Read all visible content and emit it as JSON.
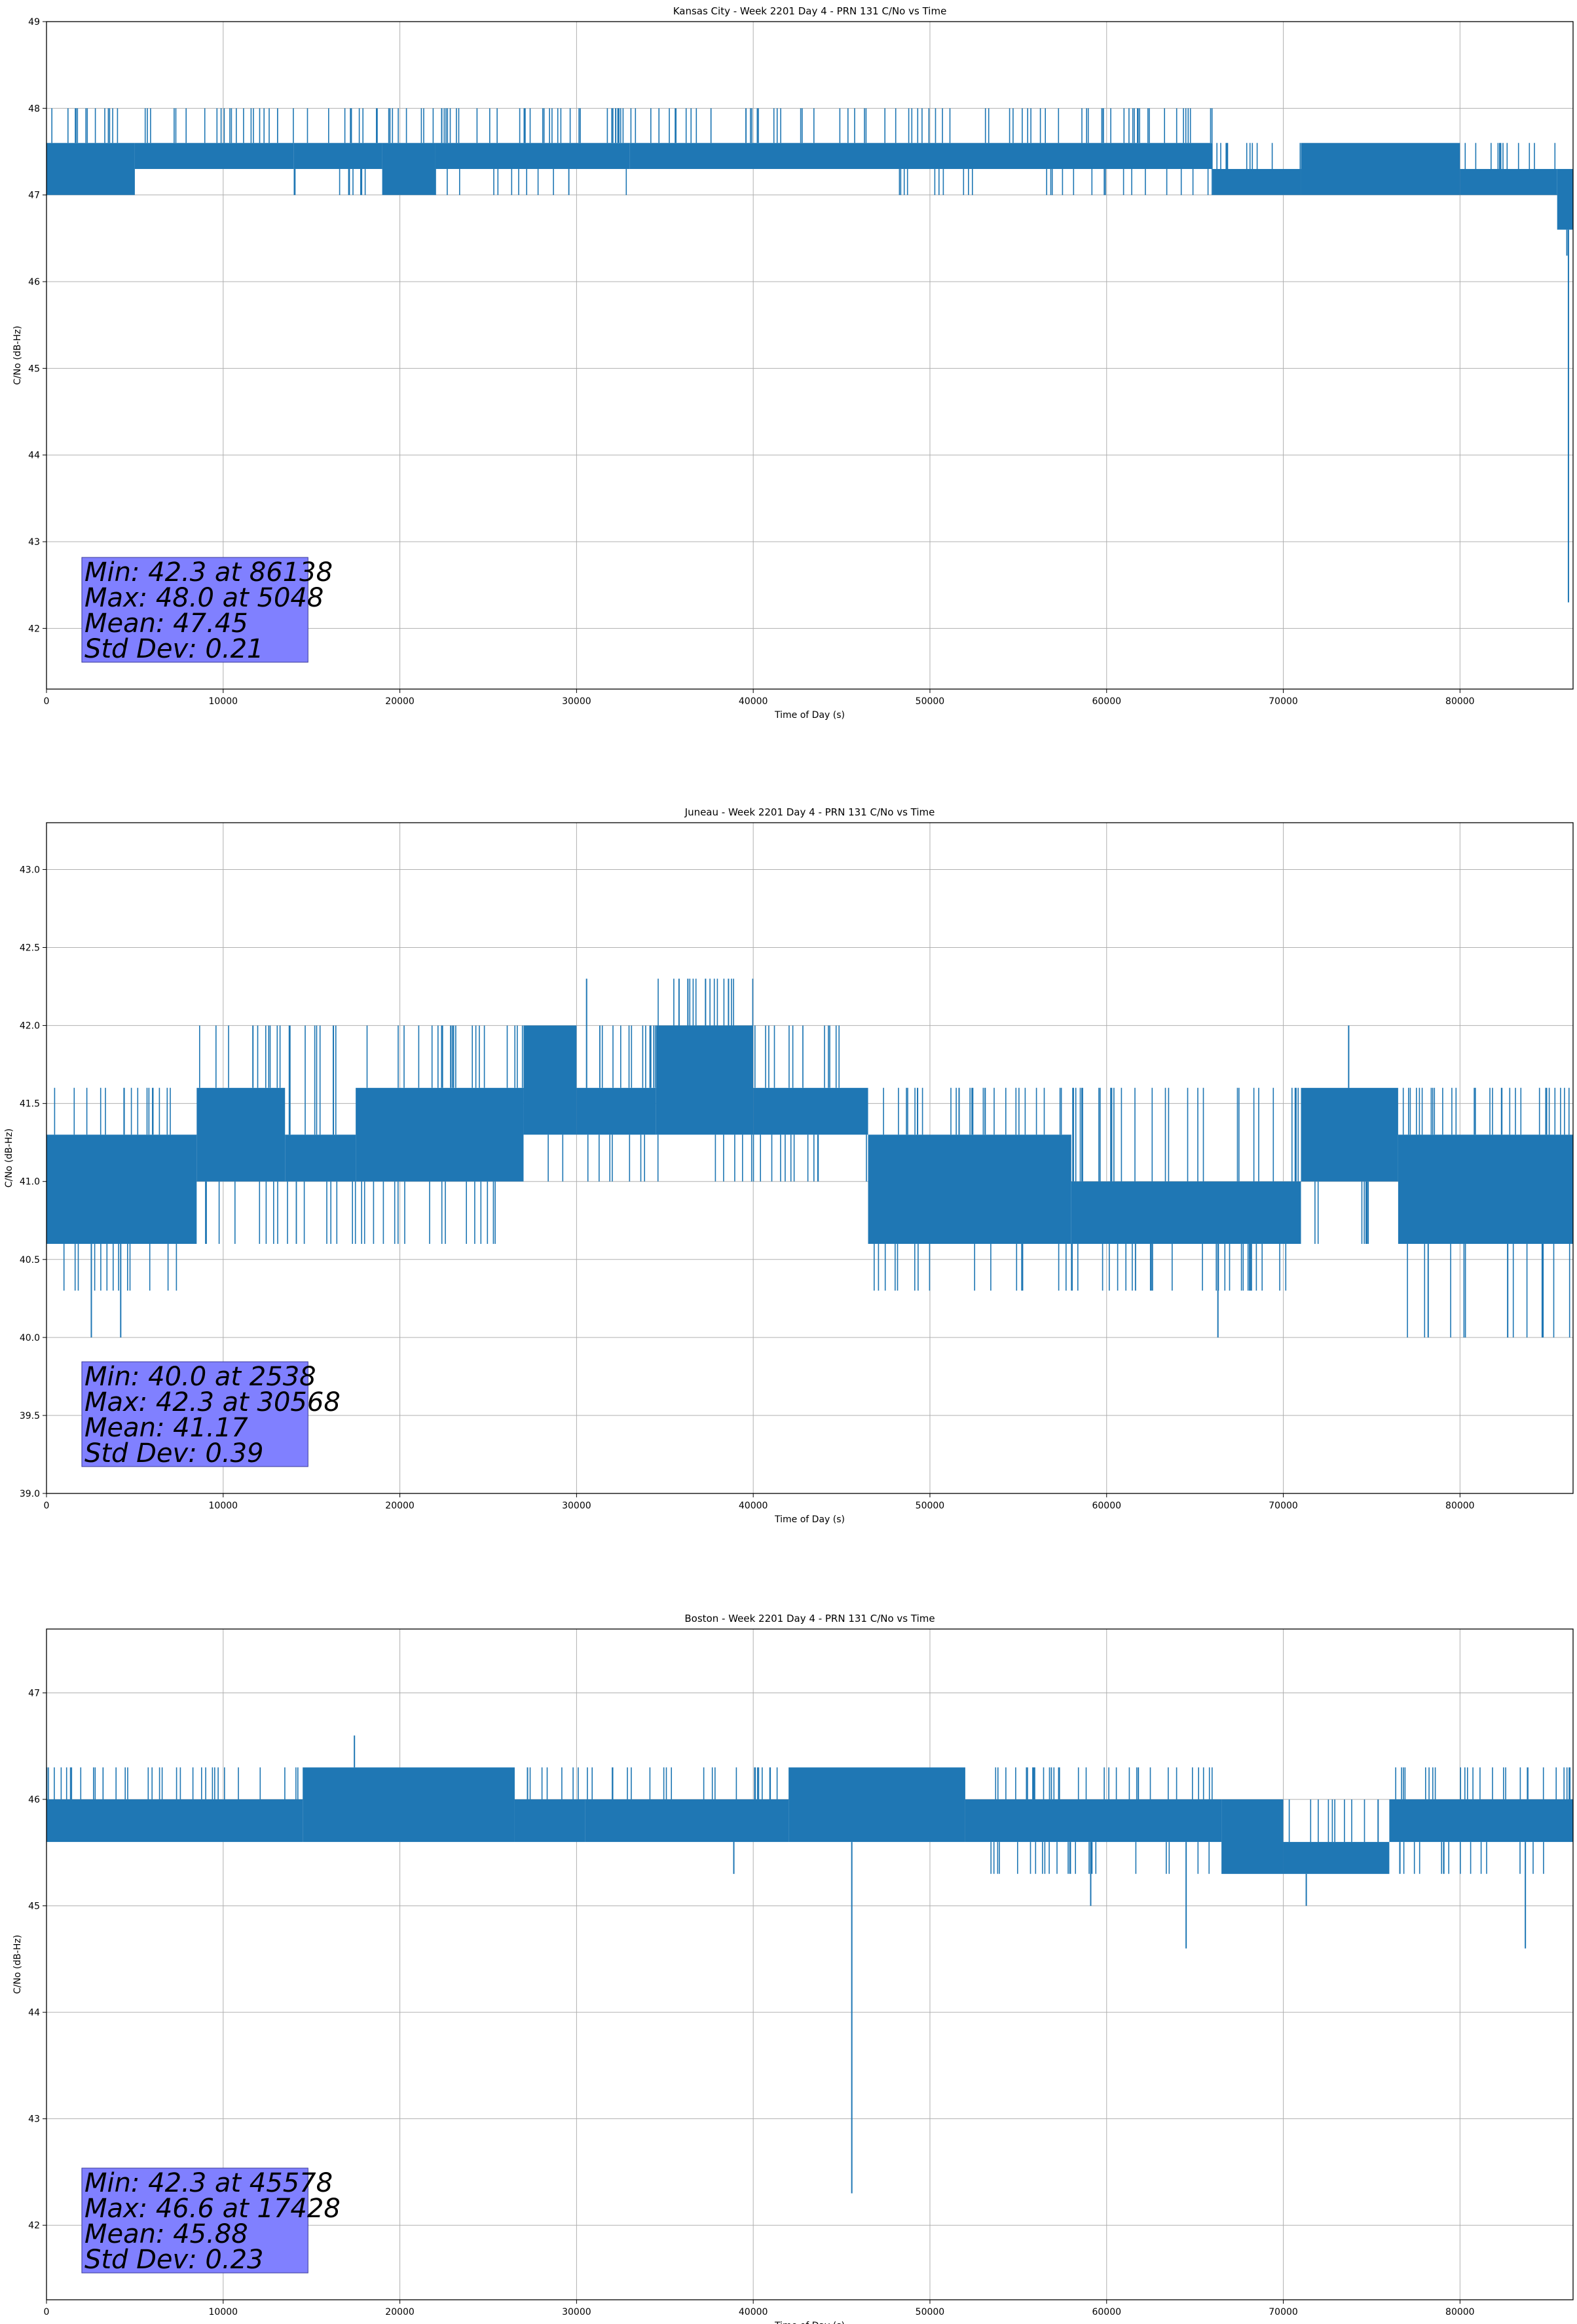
{
  "chart_data": [
    {
      "type": "line",
      "title": "Kansas City - Week 2201 Day 4 - PRN 131 C/No vs Time",
      "xlabel": "Time of Day (s)",
      "ylabel": "C/No (dB-Hz)",
      "xlim": [
        0,
        86400
      ],
      "ylim": [
        41.3,
        49
      ],
      "xticks": [
        0,
        10000,
        20000,
        30000,
        40000,
        50000,
        60000,
        70000,
        80000
      ],
      "yticks": [
        42,
        43,
        44,
        45,
        46,
        47,
        48,
        49
      ],
      "ytick_labels": [
        "42",
        "43",
        "44",
        "45",
        "46",
        "47",
        "48",
        "49"
      ],
      "grid": true,
      "color": "#1f77b4",
      "quantum": 0.3,
      "segments": [
        {
          "x0": 0,
          "x1": 5000,
          "lo": 47.0,
          "hi": 47.6,
          "up": 48.0,
          "down": 47.0
        },
        {
          "x0": 5000,
          "x1": 14000,
          "lo": 47.3,
          "hi": 47.6,
          "up": 48.0,
          "down": 47.3
        },
        {
          "x0": 14000,
          "x1": 19000,
          "lo": 47.3,
          "hi": 47.6,
          "up": 48.0,
          "down": 47.0
        },
        {
          "x0": 19000,
          "x1": 22000,
          "lo": 47.0,
          "hi": 47.6,
          "up": 48.0,
          "down": 47.0
        },
        {
          "x0": 22000,
          "x1": 33000,
          "lo": 47.3,
          "hi": 47.6,
          "up": 48.0,
          "down": 47.0
        },
        {
          "x0": 33000,
          "x1": 48000,
          "lo": 47.3,
          "hi": 47.6,
          "up": 48.0,
          "down": 47.3
        },
        {
          "x0": 48000,
          "x1": 66000,
          "lo": 47.3,
          "hi": 47.6,
          "up": 48.0,
          "down": 47.0
        },
        {
          "x0": 66000,
          "x1": 71000,
          "lo": 47.0,
          "hi": 47.3,
          "up": 47.6,
          "down": 47.0
        },
        {
          "x0": 71000,
          "x1": 80000,
          "lo": 47.0,
          "hi": 47.6,
          "up": 47.6,
          "down": 47.0
        },
        {
          "x0": 80000,
          "x1": 85500,
          "lo": 47.0,
          "hi": 47.3,
          "up": 47.6,
          "down": 47.0
        },
        {
          "x0": 85500,
          "x1": 86400,
          "lo": 46.6,
          "hi": 47.3,
          "up": 47.3,
          "down": 46.6
        }
      ],
      "spikes": [
        {
          "x": 86138,
          "y": 42.3
        },
        {
          "x": 86050,
          "y": 46.3
        }
      ],
      "stats": {
        "min_text": "Min: 42.3 at 86138",
        "max_text": "Max: 48.0 at 5048",
        "mean_text": "Mean: 47.45",
        "std_text": "Std Dev: 0.21"
      },
      "stats_box_color": "#8080ff"
    },
    {
      "type": "line",
      "title": "Juneau - Week 2201 Day 4 - PRN 131 C/No vs Time",
      "xlabel": "Time of Day (s)",
      "ylabel": "C/No (dB-Hz)",
      "xlim": [
        0,
        86400
      ],
      "ylim": [
        39.0,
        43.3
      ],
      "xticks": [
        0,
        10000,
        20000,
        30000,
        40000,
        50000,
        60000,
        70000,
        80000
      ],
      "yticks": [
        39.0,
        39.5,
        40.0,
        40.5,
        41.0,
        41.5,
        42.0,
        42.5,
        43.0
      ],
      "ytick_labels": [
        "39.0",
        "39.5",
        "40.0",
        "40.5",
        "41.0",
        "41.5",
        "42.0",
        "42.5",
        "43.0"
      ],
      "grid": true,
      "color": "#1f77b4",
      "quantum": 0.3,
      "segments": [
        {
          "x0": 0,
          "x1": 8500,
          "lo": 40.6,
          "hi": 41.3,
          "up": 41.6,
          "down": 40.3
        },
        {
          "x0": 8500,
          "x1": 13500,
          "lo": 41.0,
          "hi": 41.6,
          "up": 42.0,
          "down": 40.6
        },
        {
          "x0": 13500,
          "x1": 17500,
          "lo": 41.0,
          "hi": 41.3,
          "up": 42.0,
          "down": 40.6
        },
        {
          "x0": 17500,
          "x1": 27000,
          "lo": 41.0,
          "hi": 41.6,
          "up": 42.0,
          "down": 40.6
        },
        {
          "x0": 27000,
          "x1": 30000,
          "lo": 41.3,
          "hi": 42.0,
          "up": 42.0,
          "down": 41.0
        },
        {
          "x0": 30000,
          "x1": 34500,
          "lo": 41.3,
          "hi": 41.6,
          "up": 42.0,
          "down": 41.0
        },
        {
          "x0": 34500,
          "x1": 40000,
          "lo": 41.3,
          "hi": 42.0,
          "up": 42.3,
          "down": 41.0
        },
        {
          "x0": 40000,
          "x1": 46500,
          "lo": 41.3,
          "hi": 41.6,
          "up": 42.0,
          "down": 41.0
        },
        {
          "x0": 46500,
          "x1": 58000,
          "lo": 40.6,
          "hi": 41.3,
          "up": 41.6,
          "down": 40.3
        },
        {
          "x0": 58000,
          "x1": 71000,
          "lo": 40.6,
          "hi": 41.0,
          "up": 41.6,
          "down": 40.3
        },
        {
          "x0": 71000,
          "x1": 76500,
          "lo": 41.0,
          "hi": 41.6,
          "up": 41.6,
          "down": 40.6
        },
        {
          "x0": 76500,
          "x1": 86400,
          "lo": 40.6,
          "hi": 41.3,
          "up": 41.6,
          "down": 40.0
        }
      ],
      "spikes": [
        {
          "x": 2538,
          "y": 40.0
        },
        {
          "x": 4200,
          "y": 40.0
        },
        {
          "x": 30568,
          "y": 42.3
        },
        {
          "x": 35800,
          "y": 42.3
        },
        {
          "x": 36300,
          "y": 42.3
        },
        {
          "x": 37300,
          "y": 42.3
        },
        {
          "x": 38600,
          "y": 42.3
        },
        {
          "x": 66300,
          "y": 40.0
        },
        {
          "x": 73700,
          "y": 42.0
        },
        {
          "x": 78200,
          "y": 40.0
        },
        {
          "x": 82700,
          "y": 40.0
        },
        {
          "x": 84700,
          "y": 40.0
        }
      ],
      "stats": {
        "min_text": "Min: 40.0 at 2538",
        "max_text": "Max: 42.3 at 30568",
        "mean_text": "Mean: 41.17",
        "std_text": "Std Dev: 0.39"
      },
      "stats_box_color": "#8080ff"
    },
    {
      "type": "line",
      "title": "Boston - Week 2201 Day 4 - PRN 131 C/No vs Time",
      "xlabel": "Time of Day (s)",
      "ylabel": "C/No (dB-Hz)",
      "xlim": [
        0,
        86400
      ],
      "ylim": [
        41.3,
        47.6
      ],
      "xticks": [
        0,
        10000,
        20000,
        30000,
        40000,
        50000,
        60000,
        70000,
        80000
      ],
      "yticks": [
        42,
        43,
        44,
        45,
        46,
        47
      ],
      "ytick_labels": [
        "42",
        "43",
        "44",
        "45",
        "46",
        "47"
      ],
      "grid": true,
      "color": "#1f77b4",
      "quantum": 0.3,
      "segments": [
        {
          "x0": 0,
          "x1": 14500,
          "lo": 45.6,
          "hi": 46.0,
          "up": 46.3,
          "down": 45.6
        },
        {
          "x0": 14500,
          "x1": 26500,
          "lo": 45.6,
          "hi": 46.3,
          "up": 46.3,
          "down": 45.6
        },
        {
          "x0": 26500,
          "x1": 30500,
          "lo": 45.6,
          "hi": 46.0,
          "up": 46.3,
          "down": 45.6
        },
        {
          "x0": 30500,
          "x1": 42000,
          "lo": 45.6,
          "hi": 46.0,
          "up": 46.3,
          "down": 45.6
        },
        {
          "x0": 42000,
          "x1": 52000,
          "lo": 45.6,
          "hi": 46.3,
          "up": 46.3,
          "down": 45.6
        },
        {
          "x0": 52000,
          "x1": 66500,
          "lo": 45.6,
          "hi": 46.0,
          "up": 46.3,
          "down": 45.3
        },
        {
          "x0": 66500,
          "x1": 70000,
          "lo": 45.3,
          "hi": 46.0,
          "up": 46.0,
          "down": 45.3
        },
        {
          "x0": 70000,
          "x1": 76000,
          "lo": 45.3,
          "hi": 45.6,
          "up": 46.0,
          "down": 45.3
        },
        {
          "x0": 76000,
          "x1": 86400,
          "lo": 45.6,
          "hi": 46.0,
          "up": 46.3,
          "down": 45.3
        }
      ],
      "spikes": [
        {
          "x": 45578,
          "y": 42.3
        },
        {
          "x": 17428,
          "y": 46.6
        },
        {
          "x": 38900,
          "y": 45.3
        },
        {
          "x": 59100,
          "y": 45.0
        },
        {
          "x": 64500,
          "y": 44.6
        },
        {
          "x": 71300,
          "y": 45.0
        },
        {
          "x": 83700,
          "y": 44.6
        }
      ],
      "stats": {
        "min_text": "Min: 42.3 at 45578",
        "max_text": "Max: 46.6 at 17428",
        "mean_text": "Mean: 45.88",
        "std_text": "Std Dev: 0.23"
      },
      "stats_box_color": "#8080ff"
    }
  ]
}
